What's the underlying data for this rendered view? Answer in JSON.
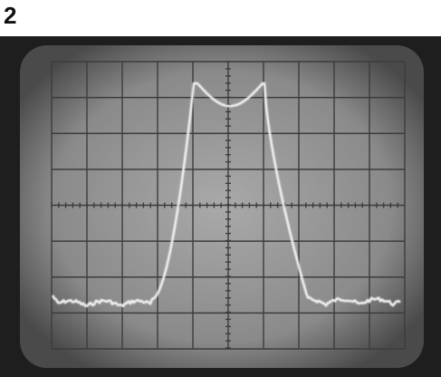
{
  "figure": {
    "label": "2"
  }
}
